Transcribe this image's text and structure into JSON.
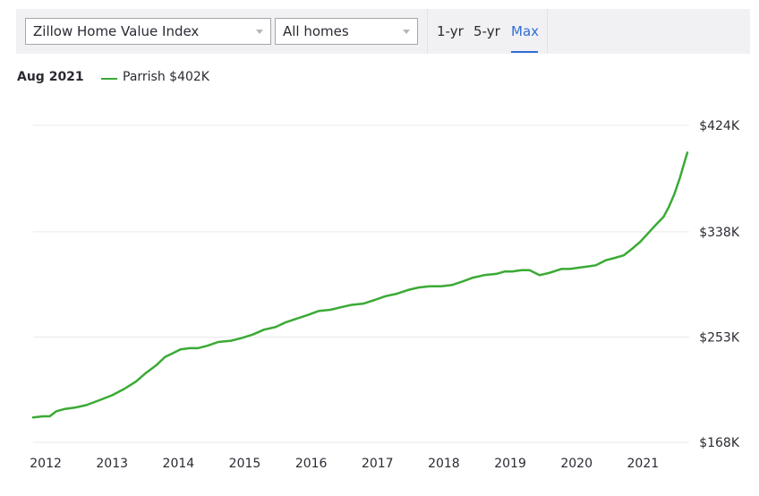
{
  "toolbar": {
    "metric_select": "Zillow Home Value Index",
    "type_select": "All homes",
    "range_tabs": [
      {
        "label": "1-yr",
        "active": false
      },
      {
        "label": "5-yr",
        "active": false
      },
      {
        "label": "Max",
        "active": true
      }
    ]
  },
  "legend": {
    "date": "Aug 2021",
    "series_text": "Parrish $402K"
  },
  "colors": {
    "series": "#3aaa35",
    "accent": "#2e6dd6",
    "grid": "#e9e9ed"
  },
  "chart_data": {
    "type": "line",
    "title": "",
    "xlabel": "",
    "ylabel": "",
    "x_tick_labels": [
      "2012",
      "2013",
      "2014",
      "2015",
      "2016",
      "2017",
      "2018",
      "2019",
      "2020",
      "2021"
    ],
    "y_tick_labels": [
      "$168K",
      "$253K",
      "$338K",
      "$424K"
    ],
    "y_ticks": [
      168,
      253,
      338,
      424
    ],
    "ylim": [
      168,
      424
    ],
    "xlim": [
      2011.81,
      2021.67
    ],
    "grid": true,
    "y_axis_position": "right",
    "series": [
      {
        "name": "Parrish",
        "x": [
          2011.81,
          2011.96,
          2012.06,
          2012.16,
          2012.29,
          2012.44,
          2012.61,
          2012.81,
          2013.0,
          2013.18,
          2013.36,
          2013.51,
          2013.66,
          2013.8,
          2013.92,
          2014.03,
          2014.17,
          2014.29,
          2014.44,
          2014.6,
          2014.79,
          2014.94,
          2015.12,
          2015.29,
          2015.46,
          2015.62,
          2015.79,
          2015.96,
          2016.11,
          2016.29,
          2016.44,
          2016.61,
          2016.79,
          2016.96,
          2017.12,
          2017.29,
          2017.46,
          2017.62,
          2017.79,
          2017.96,
          2018.12,
          2018.29,
          2018.44,
          2018.61,
          2018.79,
          2018.92,
          2019.03,
          2019.17,
          2019.29,
          2019.44,
          2019.6,
          2019.77,
          2019.9,
          2020.03,
          2020.17,
          2020.29,
          2020.44,
          2020.58,
          2020.71,
          2020.83,
          2020.96,
          2021.08,
          2021.2,
          2021.31,
          2021.39,
          2021.47,
          2021.56,
          2021.63,
          2021.67
        ],
        "values": [
          188,
          189,
          189,
          193,
          195,
          196,
          198,
          202,
          206,
          211,
          217,
          224,
          230,
          237,
          240,
          243,
          244,
          244,
          246,
          249,
          250,
          252,
          255,
          259,
          261,
          265,
          268,
          271,
          274,
          275,
          277,
          279,
          280,
          283,
          286,
          288,
          291,
          293,
          294,
          294,
          295,
          298,
          301,
          303,
          304,
          306,
          306,
          307,
          307,
          303,
          305,
          308,
          308,
          309,
          310,
          311,
          315,
          317,
          319,
          324,
          330,
          337,
          344,
          350,
          358,
          368,
          382,
          395,
          402
        ]
      }
    ]
  }
}
